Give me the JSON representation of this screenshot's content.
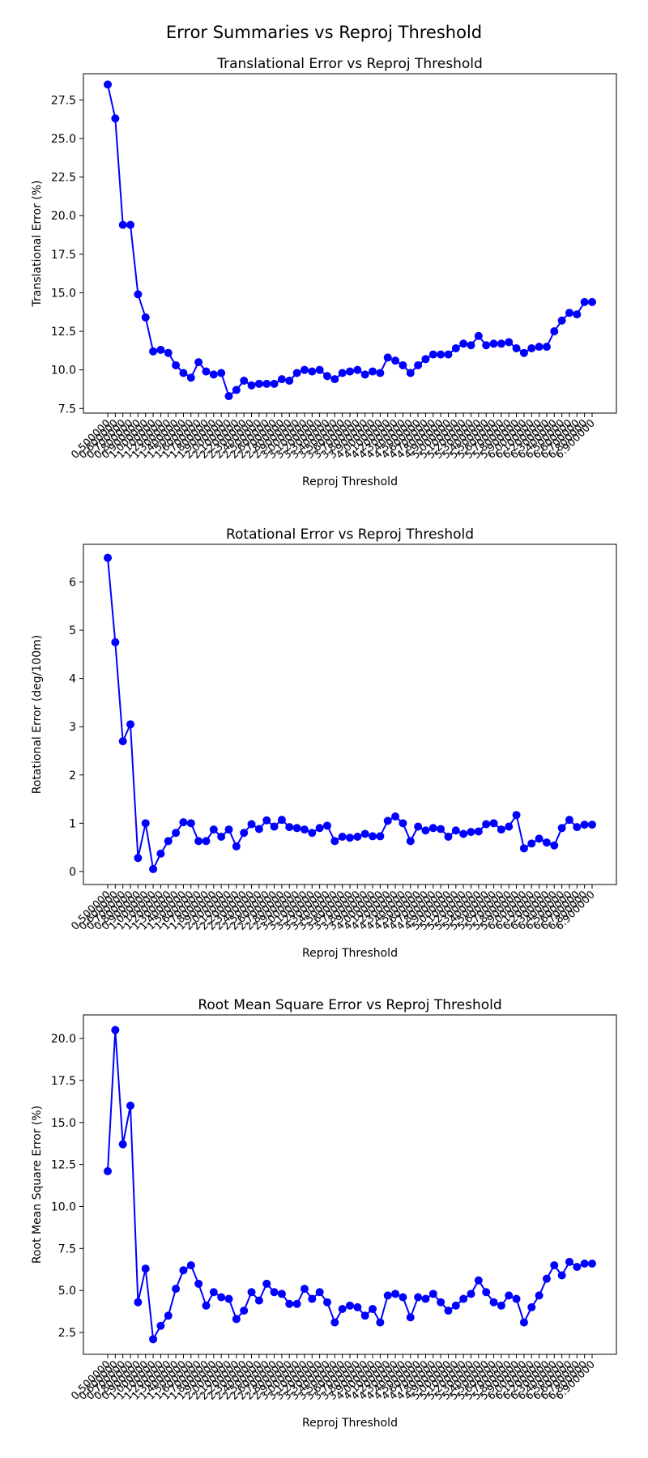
{
  "figure": {
    "title": "Error Summaries vs Reproj Threshold"
  },
  "colors": {
    "series": "#0000ff",
    "axes": "#000000",
    "background": "#ffffff"
  },
  "chart_data": [
    {
      "type": "line",
      "title": "Translational Error vs Reproj Threshold",
      "xlabel": "Reproj Threshold",
      "ylabel": "Translational Error (%)",
      "ylim": [
        7.2,
        29.2
      ],
      "yticks": [
        "7.5",
        "10.0",
        "12.5",
        "15.0",
        "17.5",
        "20.0",
        "22.5",
        "25.0",
        "27.5"
      ],
      "grid": false,
      "marker": "circle",
      "x": [
        0.5,
        0.6,
        0.7,
        0.8,
        0.9,
        1.0,
        1.1,
        1.2,
        1.3,
        1.4,
        1.5,
        1.6,
        1.7,
        1.8,
        1.9,
        2.0,
        2.1,
        2.2,
        2.3,
        2.4,
        2.5,
        2.6,
        2.7,
        2.8,
        2.9,
        3.0,
        3.1,
        3.2,
        3.3,
        3.4,
        3.5,
        3.6,
        3.7,
        3.8,
        3.9,
        4.0,
        4.1,
        4.2,
        4.3,
        4.4,
        4.5,
        4.6,
        4.7,
        4.8,
        4.9,
        5.0,
        5.1,
        5.2,
        5.3,
        5.4,
        5.5,
        5.6,
        5.7,
        5.8,
        5.9,
        6.0,
        6.1,
        6.2,
        6.3,
        6.4,
        6.5,
        6.6,
        6.7,
        6.8,
        6.9
      ],
      "values": [
        28.5,
        26.3,
        19.4,
        19.4,
        14.9,
        13.4,
        11.2,
        11.3,
        11.1,
        10.3,
        9.8,
        9.5,
        10.5,
        9.9,
        9.7,
        9.8,
        8.3,
        8.7,
        9.3,
        9.0,
        9.1,
        9.1,
        9.1,
        9.4,
        9.3,
        9.8,
        10.0,
        9.9,
        10.0,
        9.6,
        9.4,
        9.8,
        9.9,
        10.0,
        9.7,
        9.9,
        9.8,
        10.8,
        10.6,
        10.3,
        9.8,
        10.3,
        10.7,
        11.0,
        11.0,
        11.0,
        11.4,
        11.7,
        11.6,
        12.2,
        11.6,
        11.7,
        11.7,
        11.8,
        11.4,
        11.1,
        11.4,
        11.5,
        11.5,
        12.5,
        13.2,
        13.7,
        13.6,
        14.4,
        14.4
      ]
    },
    {
      "type": "line",
      "title": "Rotational Error vs Reproj Threshold",
      "xlabel": "Reproj Threshold",
      "ylabel": "Rotational Error (deg/100m)",
      "ylim": [
        -0.27,
        6.78
      ],
      "yticks": [
        "0",
        "1",
        "2",
        "3",
        "4",
        "5",
        "6"
      ],
      "grid": false,
      "marker": "circle",
      "x": [
        0.5,
        0.6,
        0.7,
        0.8,
        0.9,
        1.0,
        1.1,
        1.2,
        1.3,
        1.4,
        1.5,
        1.6,
        1.7,
        1.8,
        1.9,
        2.0,
        2.1,
        2.2,
        2.3,
        2.4,
        2.5,
        2.6,
        2.7,
        2.8,
        2.9,
        3.0,
        3.1,
        3.2,
        3.3,
        3.4,
        3.5,
        3.6,
        3.7,
        3.8,
        3.9,
        4.0,
        4.1,
        4.2,
        4.3,
        4.4,
        4.5,
        4.6,
        4.7,
        4.8,
        4.9,
        5.0,
        5.1,
        5.2,
        5.3,
        5.4,
        5.5,
        5.6,
        5.7,
        5.8,
        5.9,
        6.0,
        6.1,
        6.2,
        6.3,
        6.4,
        6.5,
        6.6,
        6.7,
        6.8,
        6.9
      ],
      "values": [
        6.5,
        4.75,
        2.7,
        3.05,
        0.28,
        1.0,
        0.05,
        0.37,
        0.63,
        0.8,
        1.02,
        1.0,
        0.63,
        0.63,
        0.87,
        0.72,
        0.87,
        0.52,
        0.8,
        0.98,
        0.88,
        1.06,
        0.93,
        1.07,
        0.92,
        0.9,
        0.87,
        0.8,
        0.9,
        0.95,
        0.63,
        0.72,
        0.7,
        0.72,
        0.78,
        0.73,
        0.73,
        1.05,
        1.14,
        1.0,
        0.63,
        0.93,
        0.85,
        0.9,
        0.88,
        0.72,
        0.85,
        0.78,
        0.82,
        0.83,
        0.98,
        1.0,
        0.87,
        0.93,
        1.17,
        0.48,
        0.58,
        0.68,
        0.6,
        0.54,
        0.9,
        1.07,
        0.92,
        0.97,
        0.97
      ]
    },
    {
      "type": "line",
      "title": "Root Mean Square Error vs Reproj Threshold",
      "xlabel": "Reproj Threshold",
      "ylabel": "Root Mean Square Error (%)",
      "ylim": [
        1.2,
        21.4
      ],
      "yticks": [
        "2.5",
        "5.0",
        "7.5",
        "10.0",
        "12.5",
        "15.0",
        "17.5",
        "20.0"
      ],
      "grid": false,
      "marker": "circle",
      "x": [
        0.5,
        0.6,
        0.7,
        0.8,
        0.9,
        1.0,
        1.1,
        1.2,
        1.3,
        1.4,
        1.5,
        1.6,
        1.7,
        1.8,
        1.9,
        2.0,
        2.1,
        2.2,
        2.3,
        2.4,
        2.5,
        2.6,
        2.7,
        2.8,
        2.9,
        3.0,
        3.1,
        3.2,
        3.3,
        3.4,
        3.5,
        3.6,
        3.7,
        3.8,
        3.9,
        4.0,
        4.1,
        4.2,
        4.3,
        4.4,
        4.5,
        4.6,
        4.7,
        4.8,
        4.9,
        5.0,
        5.1,
        5.2,
        5.3,
        5.4,
        5.5,
        5.6,
        5.7,
        5.8,
        5.9,
        6.0,
        6.1,
        6.2,
        6.3,
        6.4,
        6.5,
        6.6,
        6.7,
        6.8,
        6.9
      ],
      "values": [
        12.1,
        20.5,
        13.7,
        16.0,
        4.3,
        6.3,
        2.1,
        2.9,
        3.5,
        5.1,
        6.2,
        6.5,
        5.4,
        4.1,
        4.9,
        4.6,
        4.5,
        3.3,
        3.8,
        4.9,
        4.4,
        5.4,
        4.9,
        4.8,
        4.2,
        4.2,
        5.1,
        4.5,
        4.9,
        4.3,
        3.1,
        3.9,
        4.1,
        4.0,
        3.5,
        3.9,
        3.1,
        4.7,
        4.8,
        4.6,
        3.4,
        4.6,
        4.5,
        4.8,
        4.3,
        3.8,
        4.1,
        4.5,
        4.8,
        5.6,
        4.9,
        4.3,
        4.1,
        4.7,
        4.5,
        3.1,
        4.0,
        4.7,
        5.7,
        6.5,
        5.9,
        6.7,
        6.4,
        6.6,
        6.6
      ]
    }
  ]
}
